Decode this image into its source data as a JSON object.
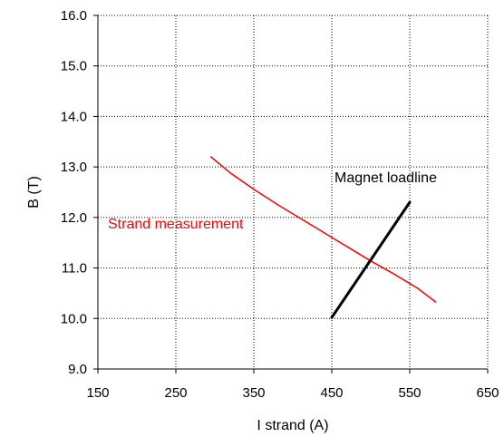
{
  "chart_data": {
    "type": "line",
    "title": "",
    "xlabel": "I strand (A)",
    "ylabel": "B (T)",
    "xlim": [
      150,
      650
    ],
    "ylim": [
      9.0,
      16.0
    ],
    "x_ticks": [
      "150",
      "250",
      "350",
      "450",
      "550",
      "650"
    ],
    "y_ticks": [
      "9.0",
      "10.0",
      "11.0",
      "12.0",
      "13.0",
      "14.0",
      "15.0",
      "16.0"
    ],
    "grid": true,
    "series": [
      {
        "name": "Strand measurement",
        "color": "#ff0000",
        "x": [
          295,
          320,
          350,
          380,
          410,
          440,
          470,
          500,
          530,
          560,
          583
        ],
        "y": [
          13.2,
          12.88,
          12.56,
          12.26,
          11.98,
          11.7,
          11.42,
          11.14,
          10.88,
          10.6,
          10.33
        ]
      },
      {
        "name": "Magnet loadline",
        "color": "#000000",
        "x": [
          450,
          550
        ],
        "y": [
          10.02,
          12.3
        ]
      }
    ],
    "annotations": [
      {
        "text": "Strand measurement",
        "color": "#ff0000"
      },
      {
        "text": "Magnet loadline",
        "color": "#000000"
      }
    ]
  }
}
